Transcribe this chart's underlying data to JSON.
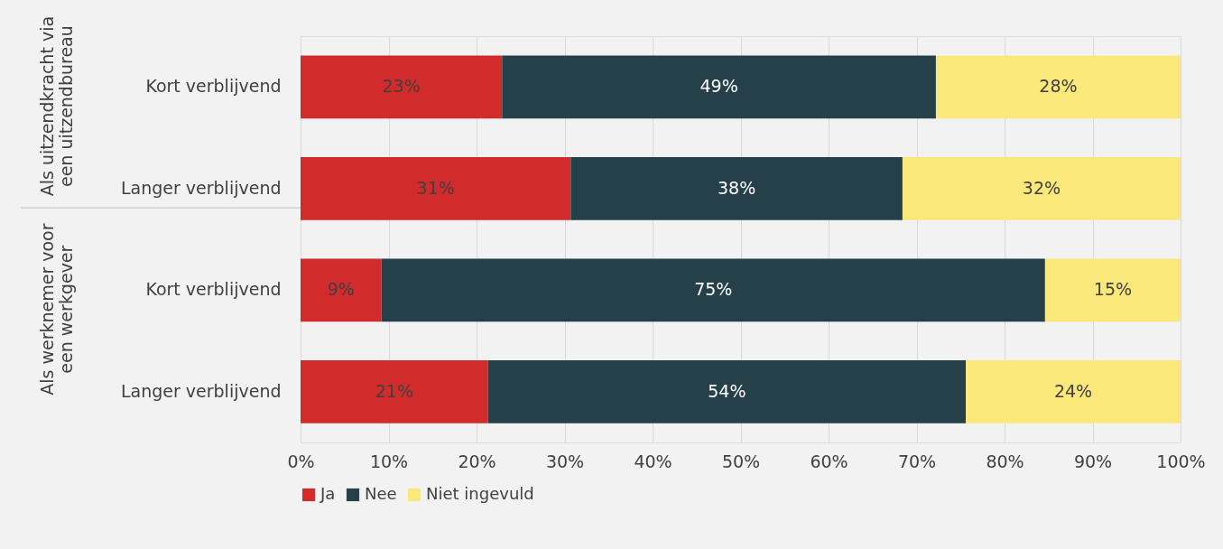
{
  "chart_data": {
    "type": "bar",
    "orientation": "horizontal",
    "stacked": true,
    "categories": [
      "Kort verblijvend",
      "Langer verblijvend",
      "Kort verblijvend",
      "Langer verblijvend"
    ],
    "series": [
      {
        "name": "Ja",
        "color": "#d22b2b",
        "values": [
          22.9,
          30.7,
          9.2,
          21.3
        ],
        "value_labels": [
          "23%",
          "31%",
          "9%",
          "21%"
        ]
      },
      {
        "name": "Nee",
        "color": "#264049",
        "values": [
          49.3,
          37.7,
          75.4,
          54.3
        ],
        "value_labels": [
          "49%",
          "38%",
          "75%",
          "54%"
        ]
      },
      {
        "name": "Niet ingevuld",
        "color": "#fbe87a",
        "values": [
          27.8,
          31.6,
          15.4,
          24.4
        ],
        "value_labels": [
          "28%",
          "32%",
          "15%",
          "24%"
        ]
      }
    ],
    "xlim": [
      0,
      100
    ],
    "xticks": [
      {
        "value": 0,
        "label": "0%"
      },
      {
        "value": 10,
        "label": "10%"
      },
      {
        "value": 20,
        "label": "20%"
      },
      {
        "value": 30,
        "label": "30%"
      },
      {
        "value": 40,
        "label": "40%"
      },
      {
        "value": 50,
        "label": "50%"
      },
      {
        "value": 60,
        "label": "60%"
      },
      {
        "value": 70,
        "label": "70%"
      },
      {
        "value": 80,
        "label": "80%"
      },
      {
        "value": 90,
        "label": "90%"
      },
      {
        "value": 100,
        "label": "100%"
      }
    ],
    "annotations": [
      "Als uitzendkracht via\neen uitzendbureau",
      "Als werknemer voor\neen werkgever"
    ],
    "grid": "x",
    "legend": "bottom"
  }
}
